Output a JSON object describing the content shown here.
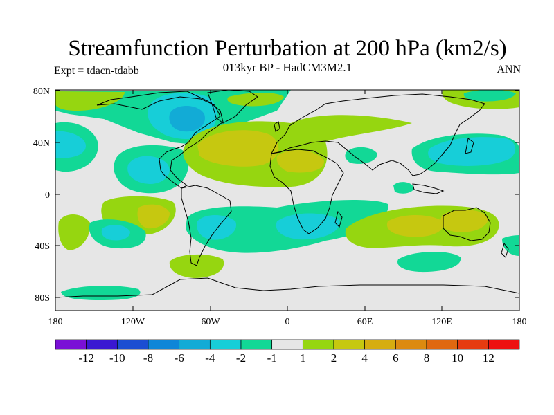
{
  "header": {
    "title": "Streamfunction Perturbation at 200 hPa (km2/s)",
    "subtitle": "013kyr BP - HadCM3M2.1",
    "left_label": "Expt = tdacn-tdabb",
    "right_label": "ANN"
  },
  "axes": {
    "lat_ticks": [
      "80N",
      "40N",
      "0",
      "40S",
      "80S"
    ],
    "lon_ticks": [
      "180",
      "120W",
      "60W",
      "0",
      "60E",
      "120E",
      "180"
    ]
  },
  "colorbar": {
    "colors": [
      "#7a10d6",
      "#3a18d2",
      "#1b4ed2",
      "#0f86d8",
      "#12abd6",
      "#17ced8",
      "#12d896",
      "#e6e6e6",
      "#96d610",
      "#c6c810",
      "#d6ad10",
      "#dc8a10",
      "#e06810",
      "#e63b10",
      "#ee1010"
    ],
    "labels": [
      "-12",
      "-10",
      "-8",
      "-6",
      "-4",
      "-2",
      "-1",
      "1",
      "2",
      "4",
      "6",
      "8",
      "10",
      "12"
    ]
  },
  "map": {
    "background_color": "#e6e6e6",
    "land_outline_color": "#000000"
  }
}
